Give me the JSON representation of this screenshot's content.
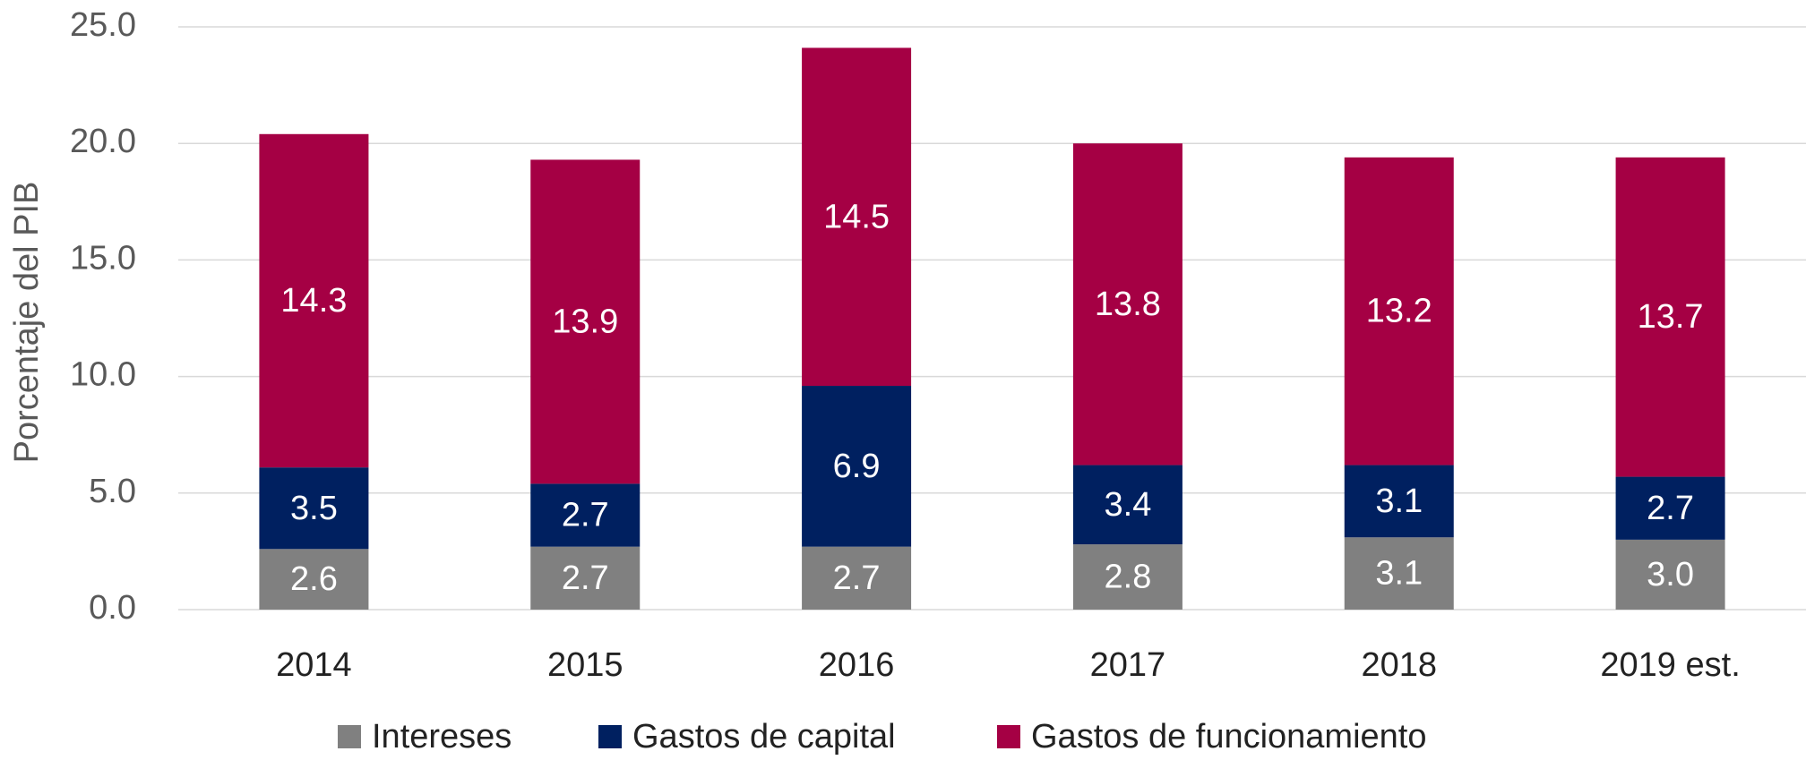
{
  "chart_data": {
    "type": "stacked_bar",
    "ylabel": "Porcentaje del PIB",
    "categories": [
      "2014",
      "2015",
      "2016",
      "2017",
      "2018",
      "2019 est."
    ],
    "series": [
      {
        "name": "Intereses",
        "color": "#808080",
        "values": [
          2.6,
          2.7,
          2.7,
          2.8,
          3.1,
          3.0
        ],
        "value_labels": [
          "2.6",
          "2.7",
          "2.7",
          "2.8",
          "3.1",
          "3.0"
        ]
      },
      {
        "name": "Gastos de capital",
        "color": "#002060",
        "values": [
          3.5,
          2.7,
          6.9,
          3.4,
          3.1,
          2.7
        ],
        "value_labels": [
          "3.5",
          "2.7",
          "6.9",
          "3.4",
          "3.1",
          "2.7"
        ]
      },
      {
        "name": "Gastos de funcionamiento",
        "color": "#A50044",
        "values": [
          14.3,
          13.9,
          14.5,
          13.8,
          13.2,
          13.7
        ],
        "value_labels": [
          "14.3",
          "13.9",
          "14.5",
          "13.8",
          "13.2",
          "13.7"
        ]
      }
    ],
    "ylim": [
      0,
      25
    ],
    "yticks": [
      {
        "value": 0,
        "label": "0.0"
      },
      {
        "value": 5,
        "label": "5.0"
      },
      {
        "value": 10,
        "label": "10.0"
      },
      {
        "value": 15,
        "label": "15.0"
      },
      {
        "value": 20,
        "label": "20.0"
      },
      {
        "value": 25,
        "label": "25.0"
      }
    ],
    "grid": true,
    "legend": "bottom"
  }
}
